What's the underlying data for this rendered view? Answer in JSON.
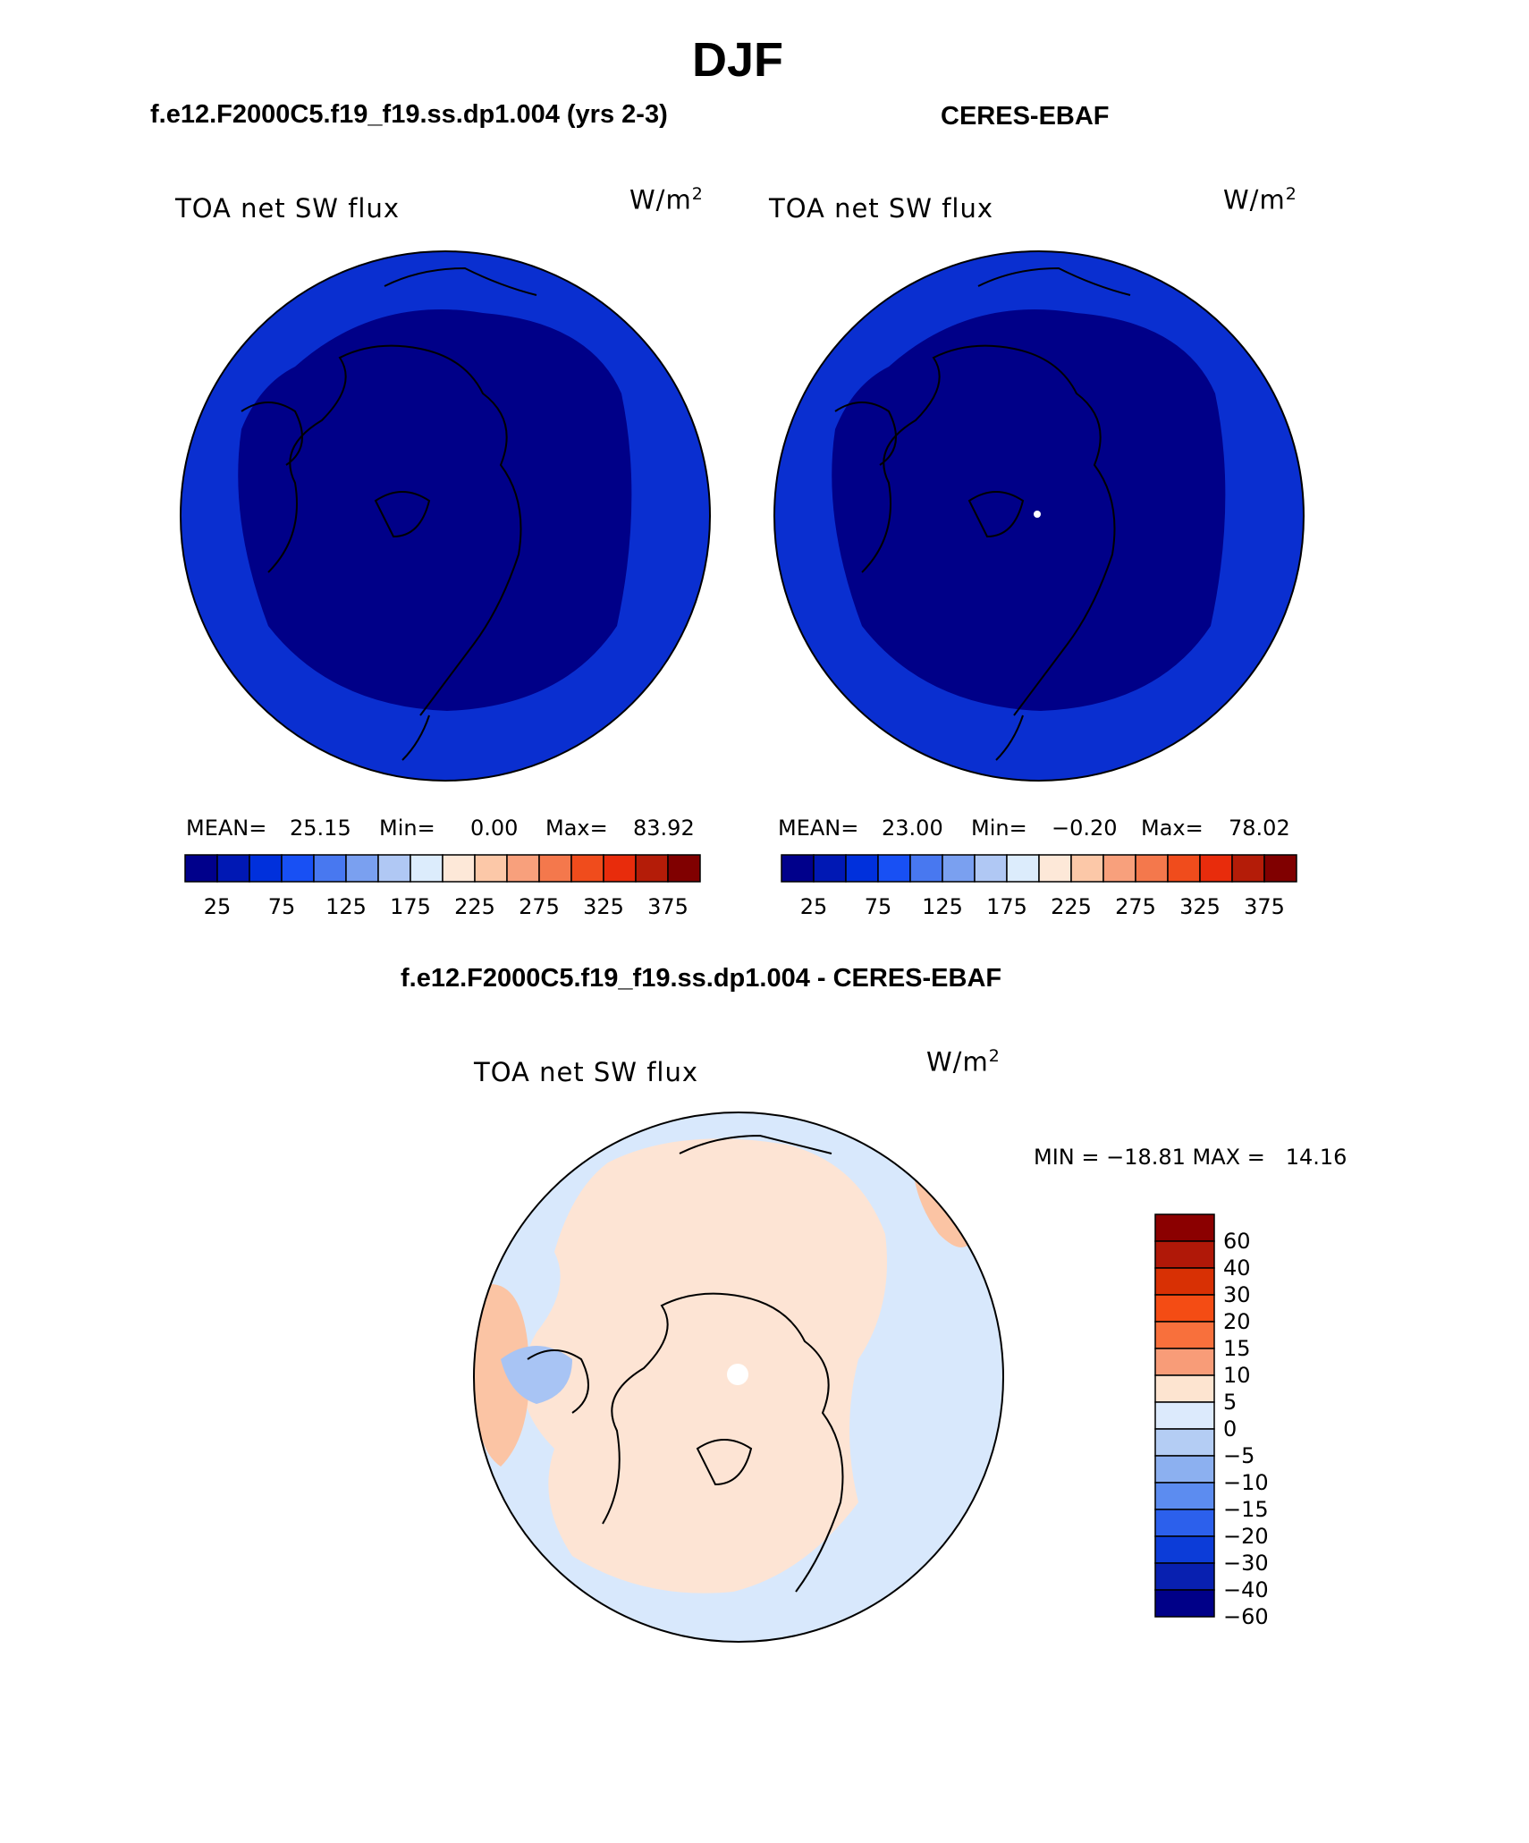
{
  "page": {
    "title": "DJF",
    "panel_left_title": "f.e12.F2000C5.f19_f19.ss.dp1.004 (yrs 2-3)",
    "panel_right_title": "CERES-EBAF",
    "panel_diff_title": "f.e12.F2000C5.f19_f19.ss.dp1.004 - CERES-EBAF"
  },
  "maps": {
    "left": {
      "variable": "TOA net SW flux",
      "units_base": "W/m",
      "units_exp": "2",
      "mean_label": "MEAN=",
      "mean": "25.15",
      "min_label": "Min=",
      "min": "0.00",
      "max_label": "Max=",
      "max": "83.92",
      "ticks": [
        "25",
        "75",
        "125",
        "175",
        "225",
        "275",
        "325",
        "375"
      ]
    },
    "right": {
      "variable": "TOA net SW flux",
      "units_base": "W/m",
      "units_exp": "2",
      "mean_label": "MEAN=",
      "mean": "23.00",
      "min_label": "Min=",
      "min": "−0.20",
      "max_label": "Max=",
      "max": "78.02",
      "ticks": [
        "25",
        "75",
        "125",
        "175",
        "225",
        "275",
        "325",
        "375"
      ]
    },
    "diff": {
      "variable": "TOA net SW flux",
      "units_base": "W/m",
      "units_exp": "2",
      "minmax": "MIN = −18.81 MAX =   14.16",
      "ticks": [
        "60",
        "40",
        "30",
        "20",
        "15",
        "10",
        "5",
        "0",
        "−5",
        "−10",
        "−15",
        "−20",
        "−30",
        "−40",
        "−60"
      ]
    }
  },
  "colorbars": {
    "abs": [
      "#00008b",
      "#0018b4",
      "#0030dc",
      "#1850f4",
      "#4878f0",
      "#7aa0f0",
      "#b0c8f4",
      "#dcecfc",
      "#fde8d8",
      "#fcc8a8",
      "#f8a07c",
      "#f4784c",
      "#f04c1c",
      "#e82c0c",
      "#b41c08",
      "#800000"
    ],
    "diff": [
      "#8b0000",
      "#b01808",
      "#d83004",
      "#f44c14",
      "#f8703c",
      "#f89c78",
      "#fde4d0",
      "#dceafc",
      "#b4cdf4",
      "#8cb0f0",
      "#5c8cf0",
      "#2c60ec",
      "#0c3cd8",
      "#0820b0",
      "#000088"
    ]
  },
  "map_fields": {
    "abs_inner": "#000088",
    "abs_outer": "#0a2fd0",
    "diff_land": "#fde4d4",
    "diff_ocean": "#d8e8fc",
    "diff_positive": "#fbc4a4",
    "diff_negative": "#a8c4f4"
  }
}
